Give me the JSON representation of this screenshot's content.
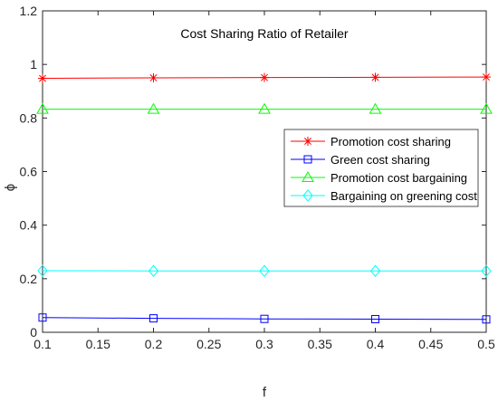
{
  "chart_data": {
    "type": "line",
    "title": "Cost Sharing Ratio of Retailer",
    "xlabel": "f",
    "ylabel": "ϕ",
    "x": [
      0.1,
      0.2,
      0.3,
      0.4,
      0.5
    ],
    "xlim": [
      0.1,
      0.5
    ],
    "ylim": [
      0,
      1.2
    ],
    "xticks": [
      "0.1",
      "0.15",
      "0.2",
      "0.25",
      "0.3",
      "0.35",
      "0.4",
      "0.45",
      "0.5"
    ],
    "yticks": [
      "0",
      "0.2",
      "0.4",
      "0.6",
      "0.8",
      "1",
      "1.2"
    ],
    "grid": false,
    "legend_position": "right",
    "series": [
      {
        "name": "Promotion cost sharing",
        "values": [
          0.948,
          0.95,
          0.951,
          0.952,
          0.953
        ],
        "color": "#ff0000",
        "marker": "asterisk"
      },
      {
        "name": "Green cost sharing",
        "values": [
          0.055,
          0.052,
          0.05,
          0.049,
          0.048
        ],
        "color": "#0000ff",
        "marker": "square"
      },
      {
        "name": "Promotion cost bargaining",
        "values": [
          0.833,
          0.833,
          0.833,
          0.833,
          0.833
        ],
        "color": "#00ff00",
        "marker": "triangle"
      },
      {
        "name": "Bargaining on greening cost",
        "values": [
          0.23,
          0.229,
          0.229,
          0.229,
          0.229
        ],
        "color": "#00ffff",
        "marker": "diamond"
      }
    ]
  }
}
